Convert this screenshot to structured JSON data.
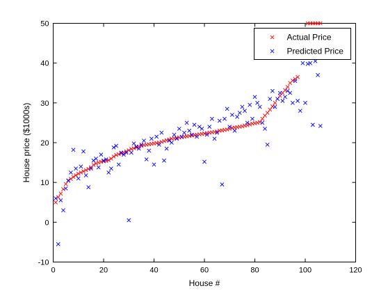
{
  "chart_data": {
    "type": "scatter",
    "title": "",
    "xlabel": "House #",
    "ylabel": "House price ($1000s)",
    "xlim": [
      0,
      120
    ],
    "ylim": [
      -10,
      50
    ],
    "xticks": [
      0,
      20,
      40,
      60,
      80,
      100,
      120
    ],
    "yticks": [
      -10,
      0,
      10,
      20,
      30,
      40,
      50
    ],
    "grid": false,
    "legend_position": "top-right",
    "series": [
      {
        "name": "Actual Price",
        "color": "#ff0000",
        "marker": "x",
        "x": [
          1,
          2,
          3,
          4,
          5,
          6,
          7,
          8,
          9,
          10,
          11,
          12,
          13,
          14,
          15,
          16,
          17,
          18,
          19,
          20,
          21,
          22,
          23,
          24,
          25,
          26,
          27,
          28,
          29,
          30,
          31,
          32,
          33,
          34,
          35,
          36,
          37,
          38,
          39,
          40,
          41,
          42,
          43,
          44,
          45,
          46,
          47,
          48,
          49,
          50,
          51,
          52,
          53,
          54,
          55,
          56,
          57,
          58,
          59,
          60,
          61,
          62,
          63,
          64,
          65,
          66,
          67,
          68,
          69,
          70,
          71,
          72,
          73,
          74,
          75,
          76,
          77,
          78,
          79,
          80,
          81,
          82,
          83,
          84,
          85,
          86,
          87,
          88,
          89,
          90,
          91,
          92,
          93,
          94,
          95,
          96,
          97,
          101,
          102,
          103,
          104,
          105,
          106
        ],
        "y": [
          5.0,
          6.3,
          7.2,
          8.3,
          9.6,
          10.4,
          10.9,
          11.4,
          11.8,
          12.2,
          12.5,
          12.8,
          13.1,
          13.4,
          13.8,
          14.4,
          14.8,
          15.0,
          15.2,
          15.3,
          15.4,
          15.6,
          16.0,
          16.5,
          16.9,
          17.1,
          17.3,
          17.5,
          17.8,
          18.1,
          18.4,
          18.6,
          18.8,
          19.0,
          19.2,
          19.4,
          19.5,
          19.6,
          19.7,
          19.8,
          19.9,
          20.0,
          20.2,
          20.4,
          20.6,
          20.8,
          21.0,
          21.1,
          21.2,
          21.3,
          21.4,
          21.5,
          21.6,
          21.7,
          21.8,
          21.9,
          22.0,
          22.1,
          22.2,
          22.3,
          22.4,
          22.5,
          22.6,
          22.7,
          22.8,
          23.0,
          23.1,
          23.2,
          23.3,
          23.5,
          23.7,
          23.8,
          23.9,
          24.0,
          24.1,
          24.3,
          24.4,
          24.6,
          24.8,
          24.9,
          25.0,
          25.2,
          26.0,
          26.8,
          27.5,
          28.3,
          29.1,
          30.0,
          31.0,
          31.8,
          32.5,
          33.2,
          34.0,
          35.0,
          35.6,
          36.0,
          36.5,
          50.0,
          50.0,
          50.0,
          50.0,
          50.0,
          50.0
        ]
      },
      {
        "name": "Predicted Price",
        "color": "#0000ff",
        "marker": "x",
        "x": [
          1,
          2,
          3,
          4,
          5,
          6,
          7,
          8,
          9,
          10,
          11,
          12,
          13,
          14,
          15,
          16,
          17,
          18,
          19,
          20,
          21,
          22,
          23,
          24,
          25,
          26,
          27,
          28,
          29,
          30,
          31,
          32,
          33,
          34,
          35,
          36,
          37,
          38,
          39,
          40,
          41,
          42,
          43,
          44,
          45,
          46,
          47,
          48,
          49,
          50,
          51,
          52,
          53,
          54,
          55,
          56,
          57,
          58,
          59,
          60,
          61,
          62,
          63,
          64,
          65,
          66,
          67,
          68,
          69,
          70,
          71,
          72,
          73,
          74,
          75,
          76,
          77,
          78,
          79,
          80,
          81,
          82,
          83,
          84,
          85,
          86,
          87,
          88,
          89,
          90,
          91,
          92,
          93,
          94,
          95,
          96,
          97,
          98,
          99,
          100,
          101,
          102,
          103,
          104,
          105,
          106
        ],
        "y": [
          6.0,
          -5.5,
          5.5,
          3.0,
          8.5,
          10.5,
          12.5,
          18.2,
          13.5,
          11.0,
          14.0,
          17.8,
          11.8,
          8.8,
          13.5,
          15.5,
          16.0,
          13.8,
          17.0,
          15.5,
          15.8,
          12.5,
          13.5,
          18.8,
          19.2,
          14.5,
          17.5,
          17.0,
          17.5,
          0.5,
          17.5,
          19.8,
          19.0,
          18.5,
          19.5,
          20.5,
          15.8,
          18.0,
          21.0,
          14.5,
          21.5,
          19.5,
          22.5,
          15.5,
          18.5,
          20.5,
          20.0,
          22.0,
          21.0,
          23.5,
          21.5,
          22.5,
          25.0,
          23.0,
          22.0,
          24.5,
          21.5,
          24.0,
          23.5,
          15.2,
          22.0,
          24.0,
          26.0,
          21.0,
          22.5,
          25.5,
          9.5,
          26.0,
          28.5,
          24.0,
          27.0,
          23.0,
          26.5,
          27.5,
          29.0,
          28.0,
          25.0,
          29.5,
          26.0,
          31.5,
          30.0,
          29.0,
          25.0,
          23.5,
          19.5,
          31.0,
          33.0,
          29.0,
          31.0,
          32.5,
          30.5,
          31.5,
          33.0,
          32.5,
          30.0,
          35.5,
          30.5,
          28.0,
          40.0,
          30.0,
          39.8,
          40.0,
          24.5,
          40.5,
          37.0,
          24.2
        ]
      }
    ]
  }
}
